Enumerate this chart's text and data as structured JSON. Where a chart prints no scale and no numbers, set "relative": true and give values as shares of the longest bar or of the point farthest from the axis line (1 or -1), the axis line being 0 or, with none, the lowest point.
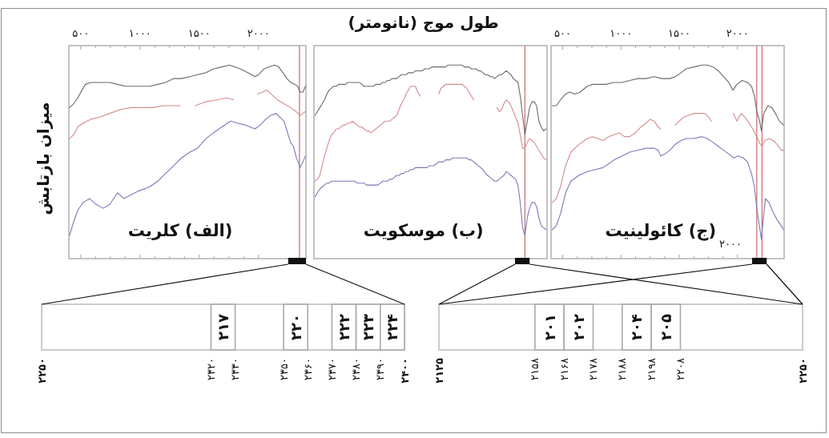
{
  "chart_data": [
    {
      "type": "line",
      "title": "(الف) کلریت",
      "ylabel": "میزان بازتابش",
      "relative": true,
      "xlim": [
        400,
        2400
      ],
      "xticks": [
        {
          "value": 500,
          "label": "۵۰۰"
        },
        {
          "value": 1000,
          "label": "۱۰۰۰"
        },
        {
          "value": 1500,
          "label": "۱۵۰۰"
        },
        {
          "value": 2000,
          "label": "۲۰۰۰"
        }
      ],
      "series": [
        {
          "color": "#6b6b6b",
          "x": [
            405,
            440,
            475,
            510,
            540,
            585,
            655,
            745,
            810,
            880,
            945,
            1015,
            1080,
            1150,
            1215,
            1285,
            1350,
            1420,
            1485,
            1555,
            1620,
            1690,
            1755,
            1800,
            1845,
            1910,
            1970,
            2000,
            2045,
            2090,
            2135,
            2170,
            2205,
            2240,
            2270,
            2305,
            2330,
            2350,
            2375,
            2395
          ],
          "values": [
            0.78,
            0.8,
            0.83,
            0.87,
            0.9,
            0.91,
            0.91,
            0.91,
            0.9,
            0.89,
            0.89,
            0.89,
            0.89,
            0.9,
            0.91,
            0.93,
            0.93,
            0.94,
            0.95,
            0.96,
            0.98,
            0.99,
            1.0,
            0.99,
            0.98,
            0.96,
            0.94,
            0.95,
            0.98,
            0.99,
            1.0,
            0.99,
            0.96,
            0.93,
            0.91,
            0.9,
            0.89,
            0.86,
            0.86,
            0.89
          ]
        },
        {
          "color": "#d48c8c",
          "x": [
            405,
            440,
            475,
            520,
            585,
            655,
            745,
            835,
            925,
            1015,
            1105,
            1195,
            1260,
            1340,
            null,
            1465,
            1555,
            1645,
            1730,
            1790,
            null,
            1990,
            2035,
            2070,
            2105,
            2160,
            2215,
            2270,
            2315,
            2350,
            2375,
            2395
          ],
          "values": [
            0.62,
            0.64,
            0.68,
            0.7,
            0.72,
            0.73,
            0.75,
            0.77,
            0.78,
            0.78,
            0.78,
            0.79,
            0.79,
            0.79,
            null,
            0.79,
            0.81,
            0.82,
            0.83,
            0.82,
            null,
            0.85,
            0.86,
            0.87,
            0.85,
            0.82,
            0.8,
            0.78,
            0.76,
            0.74,
            0.75,
            0.76
          ]
        },
        {
          "color": "#7a7ab8",
          "x": [
            405,
            440,
            475,
            520,
            575,
            630,
            690,
            745,
            810,
            865,
            925,
            990,
            1080,
            1150,
            1215,
            1285,
            1350,
            1420,
            1485,
            1555,
            1620,
            1690,
            1765,
            1820,
            1890,
            1970,
            2015,
            2060,
            2105,
            2150,
            2180,
            2215,
            2250,
            2270,
            2295,
            2315,
            2350,
            2375,
            2395
          ],
          "values": [
            0.12,
            0.19,
            0.25,
            0.29,
            0.31,
            0.28,
            0.26,
            0.28,
            0.34,
            0.31,
            0.33,
            0.35,
            0.37,
            0.4,
            0.44,
            0.48,
            0.52,
            0.55,
            0.57,
            0.62,
            0.65,
            0.68,
            0.71,
            0.7,
            0.69,
            0.67,
            0.69,
            0.72,
            0.74,
            0.75,
            0.73,
            0.71,
            0.64,
            0.6,
            0.58,
            0.53,
            0.47,
            0.5,
            0.53
          ]
        }
      ],
      "ref_lines": [
        {
          "axis": "x",
          "value": 2345,
          "color": "#cc7777"
        }
      ]
    },
    {
      "type": "line",
      "title": "(ب) موسکویت",
      "xlabel": "طول موج (نانومتر)",
      "relative": true,
      "categories": [
        null,
        null,
        null,
        null,
        null,
        null,
        null,
        null,
        null,
        null,
        null,
        null,
        null,
        null,
        null,
        null,
        null,
        null,
        null,
        null,
        null,
        null,
        null,
        null,
        null,
        null,
        null,
        null,
        null,
        null,
        null,
        null,
        null,
        null,
        null,
        null,
        null,
        null,
        null,
        null,
        null,
        null,
        null,
        null,
        null,
        null,
        null,
        null,
        null,
        null,
        null,
        null,
        null,
        null,
        null,
        null,
        null,
        null,
        null,
        null,
        null,
        null,
        null,
        null,
        null,
        null,
        null,
        null,
        null,
        null,
        null,
        null,
        null,
        null,
        null,
        null,
        null,
        null,
        null,
        null,
        null,
        null,
        null,
        null,
        null,
        null,
        null,
        null,
        null,
        null,
        null,
        null,
        null,
        null,
        null,
        null,
        null,
        null,
        null,
        null
      ],
      "series": [
        {
          "color": "#6b6b6b",
          "values": [
            0.74,
            0.76,
            0.78,
            0.8,
            0.82,
            0.85,
            0.87,
            0.88,
            0.89,
            0.89,
            0.9,
            0.9,
            0.9,
            0.9,
            0.91,
            0.91,
            0.91,
            0.91,
            0.91,
            0.91,
            0.9,
            0.89,
            0.89,
            0.89,
            0.89,
            0.89,
            0.9,
            0.9,
            0.9,
            0.91,
            0.91,
            0.92,
            0.92,
            0.93,
            0.93,
            0.93,
            0.94,
            0.95,
            0.95,
            0.95,
            0.96,
            0.96,
            0.96,
            0.97,
            0.97,
            0.97,
            0.97,
            0.98,
            0.98,
            0.98,
            0.99,
            0.99,
            0.99,
            0.99,
            0.99,
            0.99,
            0.99,
            1.0,
            1.0,
            1.0,
            1.0,
            1.0,
            1.0,
            1.0,
            0.99,
            0.99,
            0.99,
            0.98,
            0.98,
            0.98,
            0.97,
            0.97,
            0.96,
            0.95,
            0.95,
            0.94,
            0.94,
            0.93,
            0.94,
            0.95,
            0.95,
            0.96,
            0.97,
            0.96,
            0.95,
            0.93,
            0.92,
            0.91,
            0.84,
            0.74,
            0.64,
            0.71,
            0.78,
            0.81,
            0.81,
            0.79,
            0.71,
            0.68,
            0.66,
            0.67
          ]
        },
        {
          "color": "#d48c8c",
          "values": [
            0.4,
            0.41,
            0.43,
            0.48,
            0.53,
            0.57,
            0.61,
            0.64,
            0.65,
            0.67,
            0.67,
            0.68,
            0.69,
            0.69,
            0.7,
            0.7,
            0.71,
            0.7,
            0.69,
            0.68,
            0.68,
            0.67,
            0.66,
            0.66,
            0.65,
            0.66,
            0.67,
            0.68,
            0.69,
            0.7,
            0.71,
            0.71,
            0.71,
            0.72,
            0.73,
            0.74,
            0.77,
            0.8,
            0.82,
            0.85,
            0.87,
            0.89,
            0.89,
            0.89,
            0.86,
            0.84,
            null,
            null,
            null,
            null,
            null,
            null,
            null,
            0.85,
            0.88,
            0.89,
            0.9,
            0.9,
            0.9,
            0.9,
            0.9,
            0.9,
            0.9,
            0.9,
            0.89,
            0.88,
            0.86,
            0.84,
            0.82,
            null,
            null,
            null,
            null,
            null,
            null,
            null,
            null,
            null,
            0.78,
            0.76,
            0.77,
            0.8,
            0.82,
            0.81,
            0.79,
            0.76,
            0.73,
            0.7,
            0.64,
            0.57,
            0.57,
            0.6,
            0.62,
            0.61,
            0.6,
            0.58,
            0.56,
            0.54,
            0.52,
            0.51
          ]
        },
        {
          "color": "#7a7ab8",
          "values": [
            0.32,
            0.34,
            0.36,
            0.37,
            0.38,
            0.39,
            0.39,
            0.4,
            0.4,
            0.4,
            0.4,
            0.4,
            0.4,
            0.4,
            0.4,
            0.4,
            0.4,
            0.4,
            0.39,
            0.39,
            0.39,
            0.39,
            0.38,
            0.38,
            0.38,
            0.38,
            0.38,
            0.38,
            0.39,
            0.4,
            0.4,
            0.4,
            0.41,
            0.41,
            0.42,
            0.43,
            0.43,
            0.44,
            0.44,
            0.45,
            0.45,
            0.46,
            0.46,
            0.47,
            0.47,
            0.47,
            0.47,
            0.47,
            0.47,
            0.48,
            0.48,
            0.48,
            0.49,
            0.5,
            0.5,
            0.5,
            0.51,
            0.51,
            0.51,
            0.52,
            0.52,
            0.52,
            0.52,
            0.52,
            0.52,
            0.52,
            0.51,
            0.51,
            0.5,
            0.49,
            0.48,
            0.47,
            0.46,
            0.44,
            0.43,
            0.42,
            0.41,
            0.4,
            0.4,
            0.41,
            0.42,
            0.43,
            0.45,
            0.44,
            0.43,
            0.42,
            0.41,
            0.38,
            0.29,
            0.16,
            0.12,
            0.21,
            0.26,
            0.29,
            0.29,
            0.27,
            0.21,
            0.17,
            0.16,
            0.15
          ]
        }
      ]
    },
    {
      "type": "line",
      "title": "(ج) کائولینیت",
      "relative": true,
      "xlim": [
        400,
        2400
      ],
      "xticks": [
        {
          "value": 500,
          "label": "۵۰۰"
        },
        {
          "value": 1000,
          "label": "۱۰۰۰"
        },
        {
          "value": 1500,
          "label": "۱۵۰۰"
        },
        {
          "value": 2000,
          "label": "۲۰۰۰"
        }
      ],
      "series": [
        {
          "color": "#6b6b6b",
          "x": [
            410,
            445,
            480,
            525,
            560,
            605,
            650,
            710,
            755,
            800,
            870,
            940,
            1010,
            1075,
            1145,
            1215,
            1285,
            1350,
            1420,
            1465,
            1515,
            1560,
            1625,
            1695,
            1740,
            1790,
            1835,
            1880,
            1925,
            1960,
            1995,
            2040,
            2085,
            2120,
            2145,
            2165,
            2190,
            2205,
            2225,
            2260,
            2295,
            2325,
            2360,
            2395
          ],
          "values": [
            0.79,
            0.79,
            0.82,
            0.85,
            0.86,
            0.85,
            0.86,
            0.89,
            0.9,
            0.9,
            0.9,
            0.91,
            0.91,
            0.92,
            0.93,
            0.93,
            0.94,
            0.93,
            0.93,
            0.94,
            0.96,
            0.98,
            0.99,
            1.0,
            1.0,
            0.99,
            0.97,
            0.94,
            0.91,
            0.87,
            0.9,
            0.92,
            0.91,
            0.89,
            0.84,
            0.76,
            0.71,
            0.66,
            0.75,
            0.79,
            0.78,
            0.75,
            0.71,
            0.69
          ]
        },
        {
          "color": "#d48c8c",
          "x": [
            410,
            445,
            480,
            525,
            570,
            640,
            710,
            755,
            800,
            845,
            895,
            940,
            985,
            1030,
            1075,
            1125,
            1170,
            1215,
            1250,
            1285,
            1320,
            1340,
            null,
            1465,
            1500,
            1535,
            1580,
            1625,
            1675,
            1720,
            1755,
            1775,
            null,
            1965,
            1995,
            2030,
            2065,
            2100,
            2130,
            2165,
            2195,
            2210,
            2235,
            2270,
            2305,
            2340,
            2375,
            2395
          ],
          "values": [
            0.29,
            0.31,
            0.37,
            0.48,
            0.55,
            0.59,
            0.62,
            0.63,
            0.62,
            0.61,
            0.63,
            0.64,
            0.65,
            0.63,
            0.63,
            0.65,
            0.68,
            0.7,
            0.72,
            0.71,
            0.68,
            0.67,
            null,
            0.69,
            0.71,
            0.73,
            0.74,
            0.75,
            0.75,
            0.75,
            0.73,
            0.71,
            null,
            0.75,
            0.71,
            0.75,
            0.73,
            0.7,
            0.67,
            0.63,
            0.59,
            0.58,
            0.61,
            0.62,
            0.61,
            0.59,
            0.56,
            0.56
          ]
        },
        {
          "color": "#7a7ab8",
          "x": [
            410,
            445,
            480,
            525,
            570,
            640,
            710,
            780,
            845,
            895,
            940,
            1010,
            1075,
            1145,
            1215,
            1285,
            1320,
            1340,
            1375,
            1420,
            1465,
            1515,
            1560,
            1625,
            1695,
            1740,
            1790,
            1835,
            1880,
            1925,
            1970,
            2005,
            2050,
            2085,
            2120,
            2145,
            2165,
            2190,
            2205,
            2225,
            2240,
            2270,
            2305,
            2340,
            2375,
            2395
          ],
          "values": [
            0.15,
            0.17,
            0.23,
            0.34,
            0.4,
            0.43,
            0.45,
            0.46,
            0.47,
            0.49,
            0.51,
            0.53,
            0.55,
            0.56,
            0.57,
            0.57,
            0.56,
            0.53,
            0.54,
            0.56,
            0.59,
            0.61,
            0.62,
            0.62,
            0.63,
            0.62,
            0.6,
            0.58,
            0.56,
            0.54,
            0.52,
            0.53,
            0.52,
            0.5,
            0.44,
            0.37,
            0.26,
            0.16,
            0.1,
            0.23,
            0.31,
            0.29,
            0.24,
            0.2,
            0.17,
            0.15
          ]
        }
      ],
      "ref_lines": [
        {
          "axis": "x",
          "value": 2165,
          "color": "#cc7777"
        },
        {
          "axis": "x",
          "value": 2210,
          "color": "#cc7777"
        }
      ],
      "annotations": [
        "۲۰۰۰"
      ]
    },
    {
      "type": "bar",
      "orientation": "horizontal",
      "categories": [
        null
      ],
      "xlim": [
        2250,
        2400
      ],
      "xticks": [
        {
          "value": 2250,
          "label": "۲۲۵۰"
        },
        {
          "value": 2320,
          "label": "۲۳۲۰"
        },
        {
          "value": 2330,
          "label": "۲۳۳۰"
        },
        {
          "value": 2350,
          "label": "۲۳۵۰"
        },
        {
          "value": 2360,
          "label": "۲۳۶۰"
        },
        {
          "value": 2370,
          "label": "۲۳۷۰"
        },
        {
          "value": 2380,
          "label": "۲۳۸۰"
        },
        {
          "value": 2390,
          "label": "۲۳۹۰"
        },
        {
          "value": 2400,
          "label": "۲۴۰۰"
        }
      ],
      "series": [
        {
          "name": "۲۱۷",
          "color": "#ffffff",
          "values": [
            10
          ],
          "base": [
            2320
          ]
        },
        {
          "name": "۲۲۰",
          "color": "#ffffff",
          "values": [
            10
          ],
          "base": [
            2350
          ]
        },
        {
          "name": "۲۲۲",
          "color": "#ffffff",
          "values": [
            10
          ],
          "base": [
            2370
          ]
        },
        {
          "name": "۲۲۳",
          "color": "#ffffff",
          "values": [
            10
          ],
          "base": [
            2380
          ]
        },
        {
          "name": "۲۲۴",
          "color": "#ffffff",
          "values": [
            10
          ],
          "base": [
            2390
          ]
        }
      ]
    },
    {
      "type": "bar",
      "orientation": "horizontal",
      "categories": [
        null
      ],
      "xlim": [
        2125,
        2250
      ],
      "xticks": [
        {
          "value": 2125,
          "label": "۲۱۲۵"
        },
        {
          "value": 2158,
          "label": "۲۱۵۸"
        },
        {
          "value": 2168,
          "label": "۲۱۶۸"
        },
        {
          "value": 2178,
          "label": "۲۱۷۸"
        },
        {
          "value": 2188,
          "label": "۲۱۸۸"
        },
        {
          "value": 2198,
          "label": "۲۱۹۸"
        },
        {
          "value": 2208,
          "label": "۲۲۰۸"
        },
        {
          "value": 2250,
          "label": "۲۲۵۰"
        }
      ],
      "series": [
        {
          "name": "۲۰۱",
          "color": "#ffffff",
          "values": [
            10
          ],
          "base": [
            2158
          ]
        },
        {
          "name": "۲۰۲",
          "color": "#ffffff",
          "values": [
            10
          ],
          "base": [
            2168
          ]
        },
        {
          "name": "۲۰۴",
          "color": "#ffffff",
          "values": [
            10
          ],
          "base": [
            2188
          ]
        },
        {
          "name": "۲۰۵",
          "color": "#ffffff",
          "values": [
            10
          ],
          "base": [
            2198
          ]
        }
      ]
    }
  ]
}
